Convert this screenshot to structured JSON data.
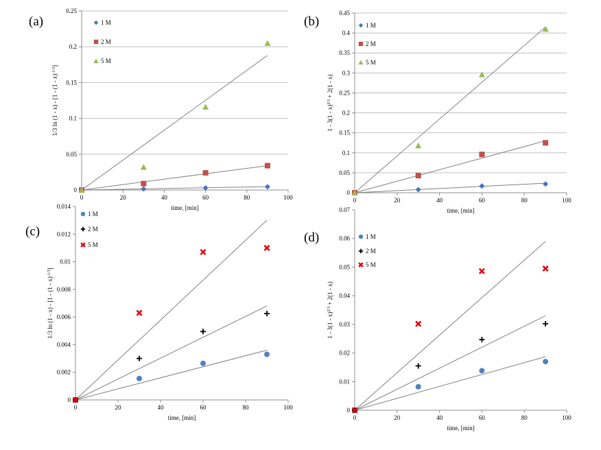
{
  "figure": {
    "description_panels": [
      "a",
      "b",
      "c",
      "d"
    ]
  },
  "colors": {
    "blue_diamond": "#4472C4",
    "red_square": "#C0504D",
    "green_triangle": "#9BBB59",
    "blue_circle": "#4F81BD",
    "black_plus": "#000000",
    "red_x": "#E8000B",
    "gridline": "#BFBFBF",
    "fit_line": "#808080"
  },
  "chart_data": [
    {
      "id": "a",
      "label": "(a)",
      "type": "scatter",
      "xlabel": "time, [min]",
      "ylabel": "1/3 ln (1 - x) - [1 - (1 - x)^-1/3]",
      "xlim": [
        0,
        100
      ],
      "ylim": [
        0,
        0.25
      ],
      "xticks": [
        "0",
        "20",
        "40",
        "60",
        "80",
        "100"
      ],
      "xtick_values": [
        0,
        20,
        40,
        60,
        80,
        100
      ],
      "yticks": [
        "0",
        "0.05",
        "0.1",
        "0.15",
        "0.2",
        "0.25"
      ],
      "ytick_values": [
        0,
        0.05,
        0.1,
        0.15,
        0.2,
        0.25
      ],
      "grid": "horizontal",
      "series": [
        {
          "name": "1 M",
          "marker": "diamond",
          "color": "#4472C4",
          "x": [
            0,
            30,
            60,
            90
          ],
          "y": [
            0,
            0.0015,
            0.003,
            0.0045
          ],
          "fit": [
            [
              0,
              0
            ],
            [
              90,
              0.0047
            ]
          ]
        },
        {
          "name": "2 M",
          "marker": "square",
          "color": "#C0504D",
          "x": [
            0,
            30,
            60,
            90
          ],
          "y": [
            0,
            0.009,
            0.024,
            0.034
          ],
          "fit": [
            [
              0,
              0
            ],
            [
              90,
              0.034
            ]
          ]
        },
        {
          "name": "5 M",
          "marker": "triangle",
          "color": "#9BBB59",
          "x": [
            0,
            30,
            60,
            90
          ],
          "y": [
            0,
            0.032,
            0.116,
            0.205
          ],
          "fit": [
            [
              0,
              0
            ],
            [
              90,
              0.188
            ]
          ]
        }
      ]
    },
    {
      "id": "b",
      "label": "(b)",
      "type": "scatter",
      "xlabel": "time, [min]",
      "ylabel": "1 - 3(1 - x)^2/3 + 2(1 - x)",
      "xlim": [
        0,
        100
      ],
      "ylim": [
        0,
        0.45
      ],
      "xticks": [
        "0",
        "20",
        "40",
        "60",
        "80",
        "100"
      ],
      "xtick_values": [
        0,
        20,
        40,
        60,
        80,
        100
      ],
      "yticks": [
        "0",
        "0.05",
        "0.1",
        "0.15",
        "0.2",
        "0.25",
        "0.3",
        "0.35",
        "0.4",
        "0.45"
      ],
      "ytick_values": [
        0,
        0.05,
        0.1,
        0.15,
        0.2,
        0.25,
        0.3,
        0.35,
        0.4,
        0.45
      ],
      "grid": "horizontal",
      "series": [
        {
          "name": "1 M",
          "marker": "diamond",
          "color": "#4472C4",
          "x": [
            0,
            30,
            60,
            90
          ],
          "y": [
            0,
            0.008,
            0.017,
            0.022
          ],
          "fit": [
            [
              0,
              0
            ],
            [
              90,
              0.024
            ]
          ]
        },
        {
          "name": "2 M",
          "marker": "square",
          "color": "#C0504D",
          "x": [
            0,
            30,
            60,
            90
          ],
          "y": [
            0,
            0.043,
            0.096,
            0.125
          ],
          "fit": [
            [
              0,
              0
            ],
            [
              90,
              0.13
            ]
          ]
        },
        {
          "name": "5 M",
          "marker": "triangle",
          "color": "#9BBB59",
          "x": [
            0,
            30,
            60,
            90
          ],
          "y": [
            0,
            0.118,
            0.296,
            0.41
          ],
          "fit": [
            [
              0,
              0
            ],
            [
              90,
              0.415
            ]
          ]
        }
      ]
    },
    {
      "id": "c",
      "label": "(c)",
      "type": "scatter",
      "xlabel": "time, [min]",
      "ylabel": "1/3 ln (1 - x) - [1 - (1 - x)^-1/3]",
      "xlim": [
        0,
        100
      ],
      "ylim": [
        0,
        0.014
      ],
      "xticks": [
        "0",
        "20",
        "40",
        "60",
        "80",
        "100"
      ],
      "xtick_values": [
        0,
        20,
        40,
        60,
        80,
        100
      ],
      "yticks": [
        "0",
        "0.002",
        "0.004",
        "0.006",
        "0.008",
        "0.01",
        "0.012",
        "0.014"
      ],
      "ytick_values": [
        0,
        0.002,
        0.004,
        0.006,
        0.008,
        0.01,
        0.012,
        0.014
      ],
      "grid": "none",
      "series": [
        {
          "name": "1 M",
          "marker": "circle",
          "color": "#4F81BD",
          "x": [
            0,
            30,
            60,
            90
          ],
          "y": [
            0,
            0.00155,
            0.00265,
            0.0033
          ],
          "fit": [
            [
              0,
              0
            ],
            [
              90,
              0.0036
            ]
          ]
        },
        {
          "name": "2 M",
          "marker": "plus",
          "color": "#000000",
          "x": [
            0,
            30,
            60,
            90
          ],
          "y": [
            0,
            0.003,
            0.00495,
            0.00625
          ],
          "fit": [
            [
              0,
              0
            ],
            [
              90,
              0.0068
            ]
          ]
        },
        {
          "name": "5 M",
          "marker": "x",
          "color": "#E8000B",
          "x": [
            0,
            30,
            60,
            90
          ],
          "y": [
            0,
            0.0063,
            0.0107,
            0.011
          ],
          "fit": [
            [
              0,
              0
            ],
            [
              90,
              0.013
            ]
          ]
        }
      ]
    },
    {
      "id": "d",
      "label": "(d)",
      "type": "scatter",
      "xlabel": "time, [min]",
      "ylabel": "1 - 3(1 - x)^2/3 + 2(1 - x)",
      "xlim": [
        0,
        100
      ],
      "ylim": [
        0,
        0.07
      ],
      "xticks": [
        "0",
        "20",
        "40",
        "60",
        "80",
        "100"
      ],
      "xtick_values": [
        0,
        20,
        40,
        60,
        80,
        100
      ],
      "yticks": [
        "0",
        "0.01",
        "0.02",
        "0.03",
        "0.04",
        "0.05",
        "0.06",
        "0.07"
      ],
      "ytick_values": [
        0,
        0.01,
        0.02,
        0.03,
        0.04,
        0.05,
        0.06,
        0.07
      ],
      "grid": "none",
      "series": [
        {
          "name": "1 M",
          "marker": "circle",
          "color": "#4F81BD",
          "x": [
            0,
            30,
            60,
            90
          ],
          "y": [
            0,
            0.0082,
            0.0138,
            0.017
          ],
          "fit": [
            [
              0,
              0
            ],
            [
              90,
              0.0187
            ]
          ]
        },
        {
          "name": "2 M",
          "marker": "plus",
          "color": "#000000",
          "x": [
            0,
            30,
            60,
            90
          ],
          "y": [
            0,
            0.0155,
            0.0247,
            0.0302
          ],
          "fit": [
            [
              0,
              0
            ],
            [
              90,
              0.033
            ]
          ]
        },
        {
          "name": "5 M",
          "marker": "x",
          "color": "#E8000B",
          "x": [
            0,
            30,
            60,
            90
          ],
          "y": [
            0,
            0.0302,
            0.0486,
            0.0495
          ],
          "fit": [
            [
              0,
              0
            ],
            [
              90,
              0.059
            ]
          ]
        }
      ]
    }
  ]
}
